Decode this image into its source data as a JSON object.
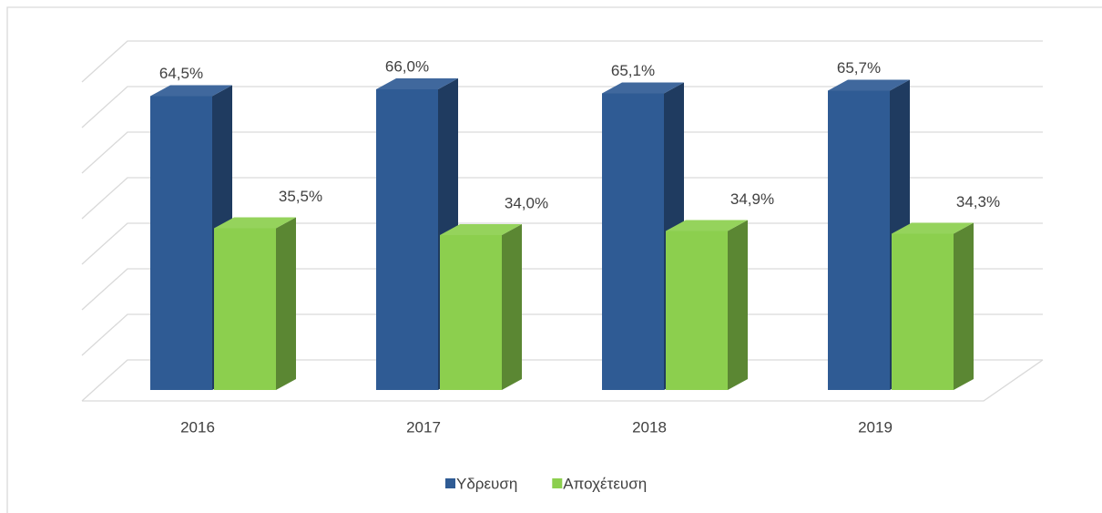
{
  "chart_data": {
    "type": "bar3d",
    "categories": [
      "2016",
      "2017",
      "2018",
      "2019"
    ],
    "series": [
      {
        "name": "Υδρευση",
        "color": "#2f5b94",
        "values": [
          64.5,
          66.0,
          65.1,
          65.7
        ],
        "value_labels": [
          "64,5%",
          "66,0%",
          "65,1%",
          "65,7%"
        ]
      },
      {
        "name": "Αποχέτευση",
        "color": "#8ccf4e",
        "values": [
          35.5,
          34.0,
          34.9,
          34.3
        ],
        "value_labels": [
          "35,5%",
          "34,0%",
          "34,9%",
          "34,3%"
        ]
      }
    ],
    "ylim": [
      0,
      70
    ],
    "yticks": [
      0,
      10,
      20,
      30,
      40,
      50,
      60,
      70
    ],
    "grid": true,
    "legend": "bottom"
  }
}
